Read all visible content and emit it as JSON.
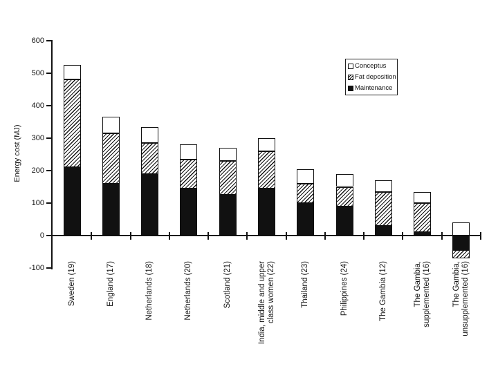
{
  "colors": {
    "ink": "#111111",
    "background": "#ffffff",
    "bar_black": "#000000",
    "bar_white": "#ffffff"
  },
  "chart_data": {
    "type": "bar",
    "stacked": true,
    "orientation": "vertical",
    "title": "",
    "xlabel": "",
    "ylabel": "Energy cost (MJ)",
    "units": "MJ",
    "ylim": [
      -100,
      600
    ],
    "yticks": [
      600,
      500,
      400,
      300,
      200,
      100,
      0,
      -100
    ],
    "grid": false,
    "legend": {
      "position": "inside-upper-right",
      "entries": [
        {
          "key": "conceptus",
          "label": "Conceptus",
          "swatch": "open-square",
          "fill": "#ffffff"
        },
        {
          "key": "fat_deposition",
          "label": "Fat deposition",
          "swatch": "hatched-square",
          "fill": "diagonal-hatch"
        },
        {
          "key": "maintenance",
          "label": "Maintenance",
          "swatch": "filled-square",
          "fill": "#000000"
        }
      ]
    },
    "categories": [
      "Sweden (19)",
      "England (17)",
      "Netherlands (18)",
      "Netherlands (20)",
      "Scotland (21)",
      "India, middle and upper\nclass women (22)",
      "Thailand (23)",
      "Philippines (24)",
      "The Gambia (12)",
      "The Gambia,\nsupplemented (16)",
      "The Gambia,\nunsupplemented (16)"
    ],
    "stack_order_bottom_to_top": [
      "maintenance",
      "fat_deposition",
      "conceptus"
    ],
    "series": [
      {
        "name": "Maintenance",
        "key": "maintenance",
        "values": [
          210,
          160,
          190,
          145,
          125,
          145,
          100,
          90,
          30,
          10,
          -45
        ]
      },
      {
        "name": "Fat deposition",
        "key": "fat_deposition",
        "values": [
          270,
          155,
          95,
          90,
          105,
          115,
          60,
          60,
          105,
          90,
          -25
        ]
      },
      {
        "name": "Conceptus",
        "key": "conceptus",
        "values": [
          45,
          50,
          50,
          45,
          40,
          40,
          45,
          40,
          35,
          35,
          40
        ]
      }
    ],
    "bar_totals": [
      525,
      365,
      335,
      280,
      270,
      300,
      205,
      190,
      170,
      135,
      -30
    ]
  }
}
